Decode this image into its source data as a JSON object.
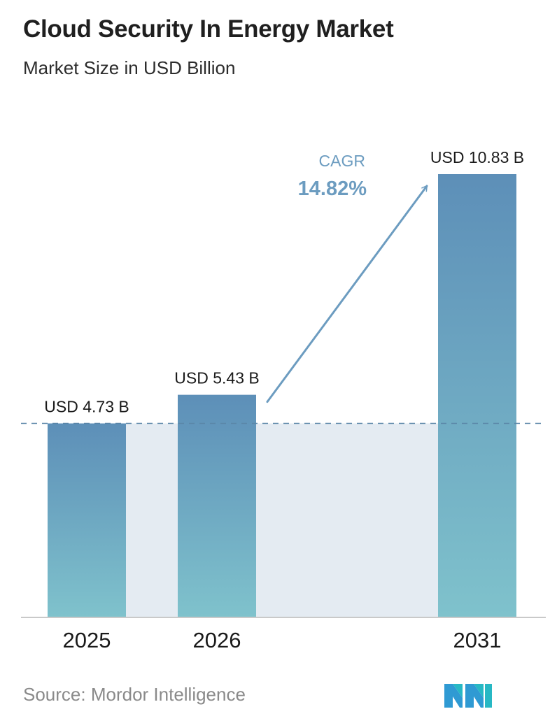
{
  "header": {
    "title": "Cloud Security In Energy Market",
    "subtitle": "Market Size in USD Billion"
  },
  "footer": {
    "source": "Source:  Mordor Intelligence",
    "logo_icon": "mordor-intelligence-logo"
  },
  "colors": {
    "bar_top": "#5d8fb8",
    "bar_bottom": "#7fc2cc",
    "band": "#e4ebf2",
    "dashed_line": "#5a86a8",
    "arrow": "#6c9cc0",
    "cagr_text": "#6c9cc0",
    "axis": "#c9c9c9"
  },
  "chart_data": {
    "type": "bar",
    "categories": [
      "2025",
      "2026",
      "2031"
    ],
    "values": [
      4.73,
      5.43,
      10.83
    ],
    "data_labels": [
      "USD 4.73 B",
      "USD 5.43 B",
      "USD 10.83 B"
    ],
    "ylim": [
      0,
      10.83
    ],
    "grid": false,
    "reference_line": 4.73,
    "annotation": {
      "label": "CAGR",
      "value": "14.82%"
    }
  }
}
